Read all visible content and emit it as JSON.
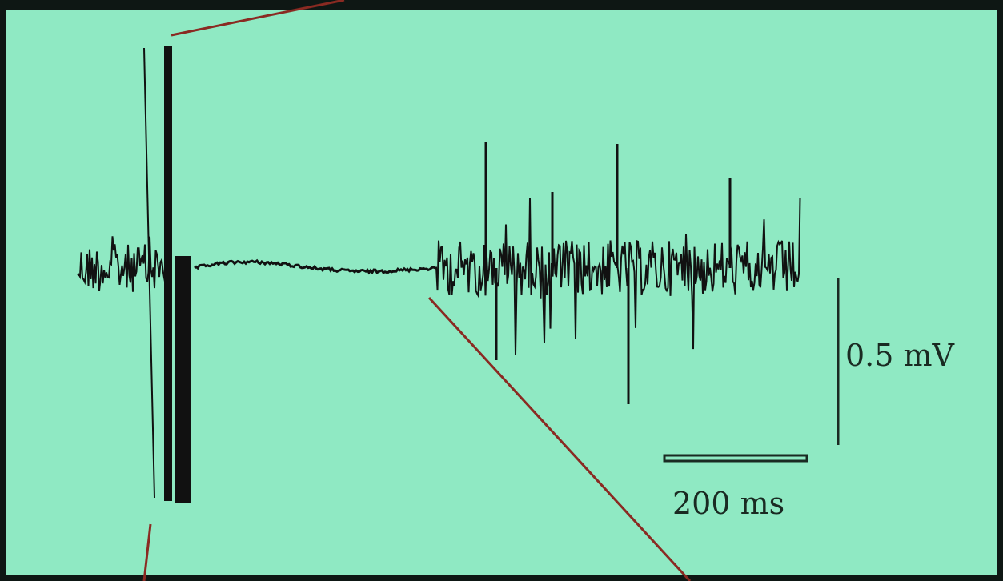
{
  "scale_bar": {
    "vertical_label": "0.5 mV",
    "horizontal_label": "200 ms"
  }
}
